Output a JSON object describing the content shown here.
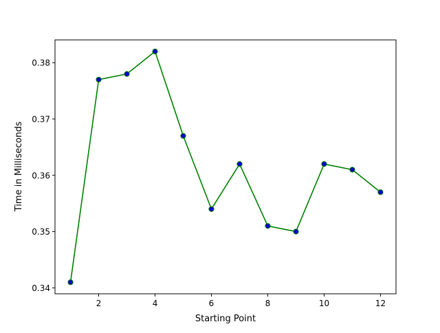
{
  "chart_data": {
    "type": "line",
    "title": "",
    "xlabel": "Starting Point",
    "ylabel": "Time in Milliseconds",
    "x": [
      1,
      2,
      3,
      4,
      5,
      6,
      7,
      8,
      9,
      10,
      11,
      12
    ],
    "series": [
      {
        "values": [
          0.341,
          0.377,
          0.378,
          0.382,
          0.367,
          0.354,
          0.362,
          0.351,
          0.35,
          0.362,
          0.361,
          0.357
        ],
        "line_color": "#008000",
        "marker_face_color": "#0000cc",
        "marker": "circle"
      }
    ],
    "xticks": [
      2,
      4,
      6,
      8,
      10,
      12
    ],
    "xtick_labels": [
      "2",
      "4",
      "6",
      "8",
      "10",
      "12"
    ],
    "yticks": [
      0.34,
      0.35,
      0.36,
      0.37,
      0.38
    ],
    "ytick_labels": [
      "0.34",
      "0.35",
      "0.36",
      "0.37",
      "0.38"
    ],
    "xlim": [
      0.45,
      12.55
    ],
    "ylim": [
      0.33895,
      0.38405
    ],
    "grid": false,
    "legend": "none"
  }
}
